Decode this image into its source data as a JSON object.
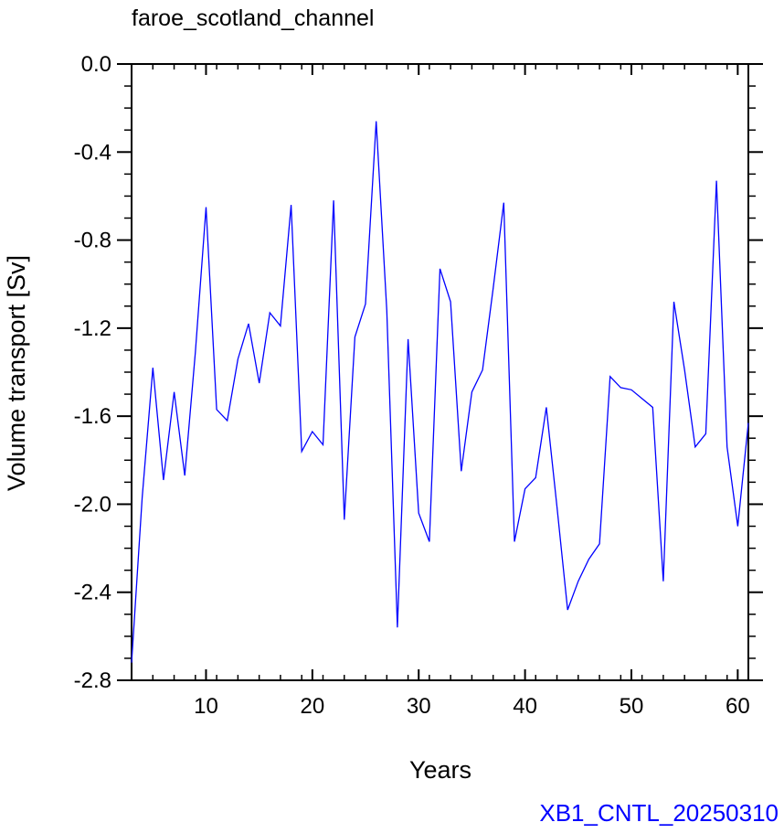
{
  "chart_data": {
    "type": "line",
    "title": "faroe_scotland_channel",
    "xlabel": "Years",
    "ylabel": "Volume transport [Sv]",
    "xlim": [
      3,
      61
    ],
    "ylim": [
      -2.8,
      0.0
    ],
    "x_ticks": [
      10,
      20,
      30,
      40,
      50,
      60
    ],
    "x_tick_labels": [
      "10",
      "20",
      "30",
      "40",
      "50",
      "60"
    ],
    "y_ticks": [
      0.0,
      -0.4,
      -0.8,
      -1.2,
      -1.6,
      -2.0,
      -2.4,
      -2.8
    ],
    "y_tick_labels": [
      "0.0",
      "-0.4",
      "-0.8",
      "-1.2",
      "-1.6",
      "-2.0",
      "-2.4",
      "-2.8"
    ],
    "grid": false,
    "line_color": "#0000ff",
    "series": [
      {
        "x": [
          3,
          4,
          5,
          6,
          7,
          8,
          9,
          10,
          11,
          12,
          13,
          14,
          15,
          16,
          17,
          18,
          19,
          20,
          21,
          22,
          23,
          24,
          25,
          26,
          27,
          28,
          29,
          30,
          31,
          32,
          33,
          34,
          35,
          36,
          37,
          38,
          39,
          40,
          41,
          42,
          43,
          44,
          45,
          46,
          47,
          48,
          49,
          50,
          51,
          52,
          53,
          54,
          55,
          56,
          57,
          58,
          59,
          60,
          61
        ],
        "values": [
          -2.72,
          -1.97,
          -1.38,
          -1.89,
          -1.49,
          -1.87,
          -1.31,
          -0.65,
          -1.57,
          -1.62,
          -1.34,
          -1.18,
          -1.45,
          -1.13,
          -1.19,
          -0.64,
          -1.76,
          -1.67,
          -1.73,
          -0.62,
          -2.07,
          -1.24,
          -1.09,
          -0.26,
          -1.12,
          -2.56,
          -1.25,
          -2.04,
          -2.17,
          -0.93,
          -1.08,
          -1.85,
          -1.49,
          -1.39,
          -1.02,
          -0.63,
          -2.17,
          -1.93,
          -1.88,
          -1.56,
          -2.01,
          -2.48,
          -2.35,
          -2.25,
          -2.18,
          -1.42,
          -1.47,
          -1.48,
          -1.52,
          -1.56,
          -2.35,
          -1.08,
          -1.39,
          -1.74,
          -1.68,
          -0.53,
          -1.74,
          -2.1,
          -1.63
        ]
      }
    ]
  },
  "footer": {
    "run_id": "XB1_CNTL_20250310",
    "color": "#0000ff"
  }
}
